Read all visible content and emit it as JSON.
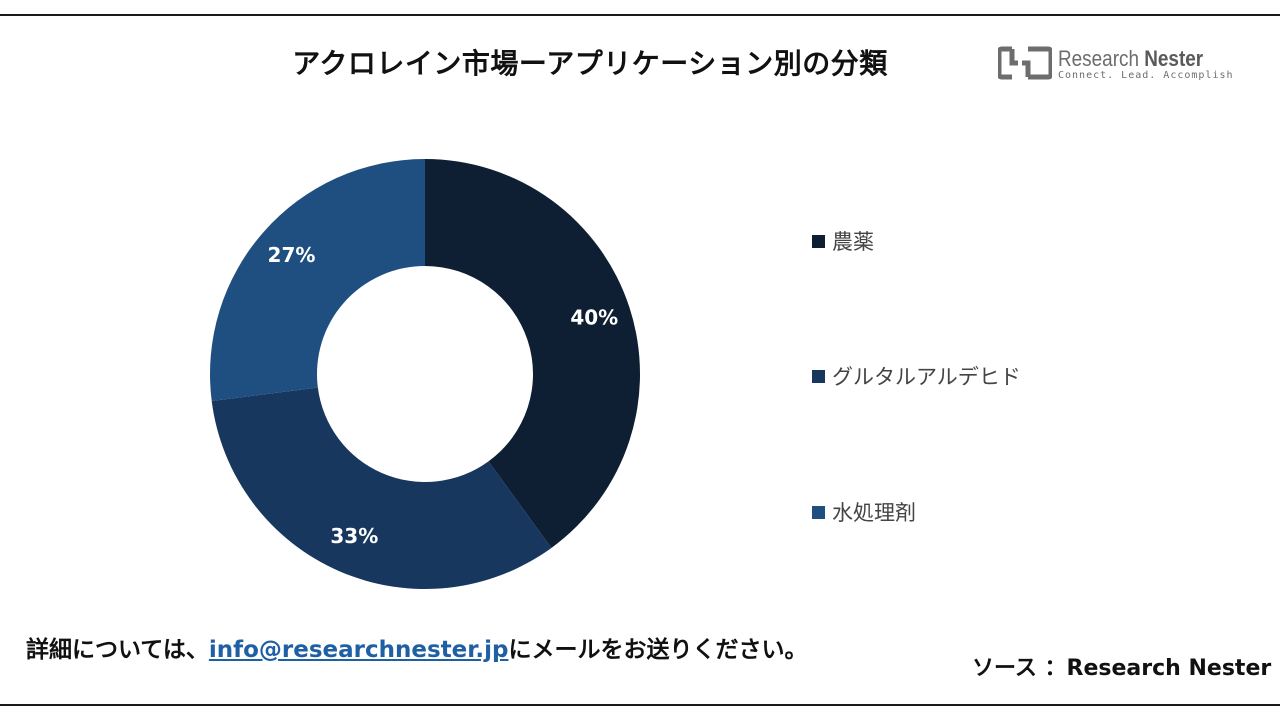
{
  "title": "アクロレイン市場ーアプリケーション別の分類",
  "logo": {
    "name_light": "Research",
    "name_bold": "Nester",
    "tagline": "Connect. Lead. Accomplish",
    "icon": "research-nester-logo-icon"
  },
  "chart_data": {
    "type": "pie",
    "donut": true,
    "title": "アクロレイン市場ーアプリケーション別の分類",
    "legend_position": "right",
    "categories": [
      "農薬",
      "グルタルアルデヒド",
      "水処理剤"
    ],
    "values": [
      40,
      33,
      27
    ],
    "labels": [
      "40%",
      "33%",
      "27%"
    ],
    "colors": [
      "#0e1f33",
      "#17375e",
      "#1f4e80"
    ]
  },
  "footer": {
    "prefix": "詳細については、",
    "email": "info@researchnester.jp",
    "suffix": "にメールをお送りください。"
  },
  "source": "ソース ：Research Nester"
}
